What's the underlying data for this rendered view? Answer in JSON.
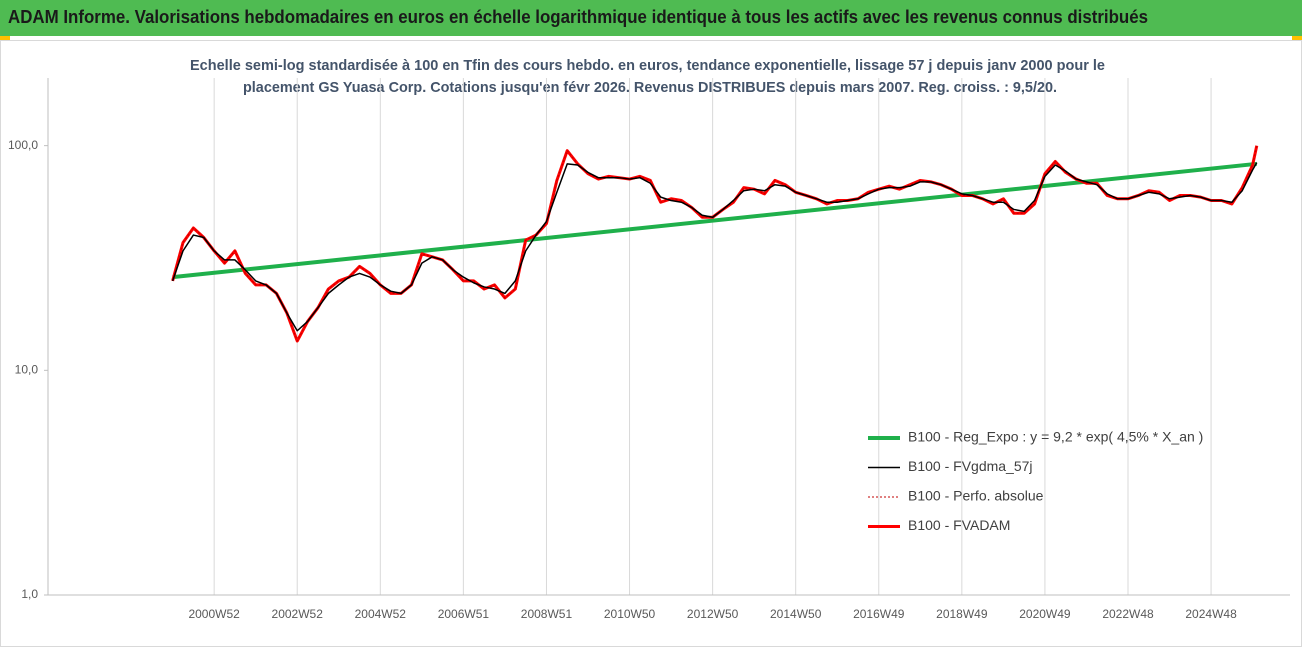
{
  "chart_data": {
    "type": "line",
    "title": "ADAM Informe. Valorisations hebdomadaires en euros en échelle logarithmique identique à tous les actifs avec les revenus connus distribués",
    "subtitle": [
      "Echelle semi-log standardisée à 100 en Tfin des cours hebdo. en euros, tendance exponentielle, lissage 57 j depuis janv 2000 pour le",
      "placement GS Yuasa Corp. Cotations jusqu'en févr 2026. Revenus DISTRIBUES depuis mars 2007. Reg. croiss. : 9,5/20."
    ],
    "log_scale": true,
    "grid": "x",
    "legend": "lower right",
    "xlim": [
      1997,
      2026.9
    ],
    "ylim": [
      1,
      200
    ],
    "yticks": [
      {
        "value": 1,
        "label": "1,0"
      },
      {
        "value": 10,
        "label": "10,0"
      },
      {
        "value": 100,
        "label": "100,0"
      }
    ],
    "xticks": [
      {
        "value": 2001,
        "label": "2000W52"
      },
      {
        "value": 2003,
        "label": "2002W52"
      },
      {
        "value": 2005,
        "label": "2004W52"
      },
      {
        "value": 2007,
        "label": "2006W51"
      },
      {
        "value": 2009,
        "label": "2008W51"
      },
      {
        "value": 2011,
        "label": "2010W50"
      },
      {
        "value": 2013,
        "label": "2012W50"
      },
      {
        "value": 2015,
        "label": "2014W50"
      },
      {
        "value": 2017,
        "label": "2016W49"
      },
      {
        "value": 2019,
        "label": "2018W49"
      },
      {
        "value": 2021,
        "label": "2020W49"
      },
      {
        "value": 2023,
        "label": "2022W48"
      },
      {
        "value": 2025,
        "label": "2024W48"
      }
    ],
    "x": [
      2000,
      2000.25,
      2000.5,
      2000.75,
      2001,
      2001.25,
      2001.5,
      2001.75,
      2002,
      2002.25,
      2002.5,
      2002.75,
      2003,
      2003.25,
      2003.5,
      2003.75,
      2004,
      2004.25,
      2004.5,
      2004.75,
      2005,
      2005.25,
      2005.5,
      2005.75,
      2006,
      2006.25,
      2006.5,
      2006.75,
      2007,
      2007.25,
      2007.5,
      2007.75,
      2008,
      2008.25,
      2008.5,
      2008.75,
      2009,
      2009.25,
      2009.5,
      2009.75,
      2010,
      2010.25,
      2010.5,
      2010.75,
      2011,
      2011.25,
      2011.5,
      2011.75,
      2012,
      2012.25,
      2012.5,
      2012.75,
      2013,
      2013.25,
      2013.5,
      2013.75,
      2014,
      2014.25,
      2014.5,
      2014.75,
      2015,
      2015.25,
      2015.5,
      2015.75,
      2016,
      2016.25,
      2016.5,
      2016.75,
      2017,
      2017.25,
      2017.5,
      2017.75,
      2018,
      2018.25,
      2018.5,
      2018.75,
      2019,
      2019.25,
      2019.5,
      2019.75,
      2020,
      2020.25,
      2020.5,
      2020.75,
      2021,
      2021.25,
      2021.5,
      2021.75,
      2022,
      2022.25,
      2022.5,
      2022.75,
      2023,
      2023.25,
      2023.5,
      2023.75,
      2024,
      2024.25,
      2024.5,
      2024.75,
      2025,
      2025.25,
      2025.5,
      2025.75,
      2026,
      2026.1
    ],
    "series": [
      {
        "name": "B100 - Reg_Expo : y = 9,2 * exp( 4,5% * X_an )",
        "color": "#1fb04b",
        "line_width": 4,
        "x": [
          2000,
          2026.1
        ],
        "values": [
          26,
          83
        ]
      },
      {
        "name": "B100 - FVgdma_57j",
        "color": "#000000",
        "line_width": 1.5,
        "values": [
          25,
          34,
          40,
          39,
          34,
          31,
          31,
          28,
          25,
          24,
          22,
          18,
          15,
          16.5,
          19,
          22,
          24,
          26,
          27,
          26,
          24,
          22.5,
          22,
          24,
          30,
          32,
          31,
          28,
          26,
          24.5,
          23.5,
          23,
          22,
          25,
          34,
          40,
          46,
          62,
          83,
          82,
          76,
          72,
          72,
          72,
          71,
          72,
          68,
          59,
          57,
          56,
          53,
          49,
          48,
          52,
          57,
          63,
          64,
          63,
          67,
          66,
          62,
          60,
          58,
          56,
          56,
          57,
          58,
          61,
          64,
          65,
          65,
          66,
          69,
          69,
          67,
          64,
          61,
          60,
          58,
          56,
          56,
          52,
          51,
          57,
          73,
          82,
          77,
          71,
          69,
          67,
          61,
          58,
          58,
          60,
          62,
          61,
          58,
          59,
          60,
          59,
          57,
          57,
          56,
          63,
          78,
          84
        ]
      },
      {
        "name": "B100 - Perfo. absolue",
        "color": "#c00000",
        "line_width": 1,
        "line_style": "dotted",
        "values": [
          25,
          37,
          43,
          39,
          34,
          30,
          34,
          27,
          24,
          24,
          22,
          18,
          13.5,
          16.5,
          19,
          23,
          25,
          26,
          29,
          27,
          24,
          22,
          22,
          24,
          33,
          32,
          31,
          28,
          25,
          25,
          23,
          24,
          21,
          23,
          38,
          40,
          45,
          70,
          95,
          83,
          75,
          71,
          73,
          72,
          71,
          73,
          70,
          56,
          58,
          57,
          53,
          48,
          48,
          52,
          56,
          65,
          64,
          61,
          70,
          67,
          62,
          60,
          58,
          55,
          57,
          57,
          58,
          62,
          64,
          66,
          64,
          67,
          70,
          69,
          67,
          64,
          60,
          60,
          58,
          55,
          58,
          50,
          50,
          55,
          75,
          85,
          76,
          71,
          68,
          68,
          60,
          58,
          58,
          60,
          63,
          62,
          57,
          60,
          60,
          59,
          57,
          57,
          55,
          65,
          82,
          100
        ]
      },
      {
        "name": "B100 - FVADAM",
        "color": "#ff0000",
        "line_width": 3,
        "values": [
          25,
          37,
          43,
          39,
          34,
          30,
          34,
          27,
          24,
          24,
          22,
          18,
          13.5,
          16.5,
          19,
          23,
          25,
          26,
          29,
          27,
          24,
          22,
          22,
          24,
          33,
          32,
          31,
          28,
          25,
          25,
          23,
          24,
          21,
          23,
          38,
          40,
          45,
          70,
          95,
          83,
          75,
          71,
          73,
          72,
          71,
          73,
          70,
          56,
          58,
          57,
          53,
          48,
          48,
          52,
          56,
          65,
          64,
          61,
          70,
          67,
          62,
          60,
          58,
          55,
          57,
          57,
          58,
          62,
          64,
          66,
          64,
          67,
          70,
          69,
          67,
          64,
          60,
          60,
          58,
          55,
          58,
          50,
          50,
          55,
          75,
          85,
          76,
          71,
          68,
          68,
          60,
          58,
          58,
          60,
          63,
          62,
          57,
          60,
          60,
          59,
          57,
          57,
          55,
          65,
          82,
          100
        ]
      }
    ]
  }
}
